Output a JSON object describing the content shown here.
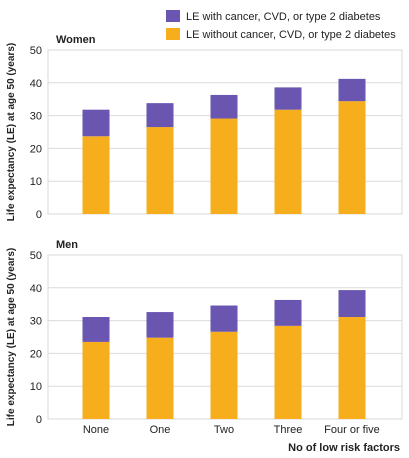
{
  "chart_data": {
    "type": "bar",
    "stacked": true,
    "categories": [
      "None",
      "One",
      "Two",
      "Three",
      "Four or five"
    ],
    "xlabel": "No of low risk factors",
    "ylabel": "Life expectancy (LE) at age 50 (years)",
    "ylim": [
      0,
      50
    ],
    "yticks": [
      0,
      10,
      20,
      30,
      40,
      50
    ],
    "legend": [
      {
        "label": "LE with cancer, CVD, or type 2 diabetes",
        "color": "#6a55b1"
      },
      {
        "label": "LE without cancer, CVD, or type 2 diabetes",
        "color": "#f6ae1c"
      }
    ],
    "panels": [
      {
        "title": "Women",
        "series": [
          {
            "name": "LE without cancer, CVD, or type 2 diabetes",
            "color": "#f6ae1c",
            "values": [
              23.7,
              26.5,
              29.1,
              31.8,
              34.4
            ]
          },
          {
            "name": "LE with cancer, CVD, or type 2 diabetes",
            "color": "#6a55b1",
            "values": [
              8.1,
              7.3,
              7.2,
              6.8,
              6.8
            ]
          }
        ]
      },
      {
        "title": "Men",
        "series": [
          {
            "name": "LE without cancer, CVD, or type 2 diabetes",
            "color": "#f6ae1c",
            "values": [
              23.5,
              24.8,
              26.6,
              28.4,
              31.1
            ]
          },
          {
            "name": "LE with cancer, CVD, or type 2 diabetes",
            "color": "#6a55b1",
            "values": [
              7.6,
              7.8,
              8.0,
              7.9,
              8.2
            ]
          }
        ]
      }
    ]
  }
}
